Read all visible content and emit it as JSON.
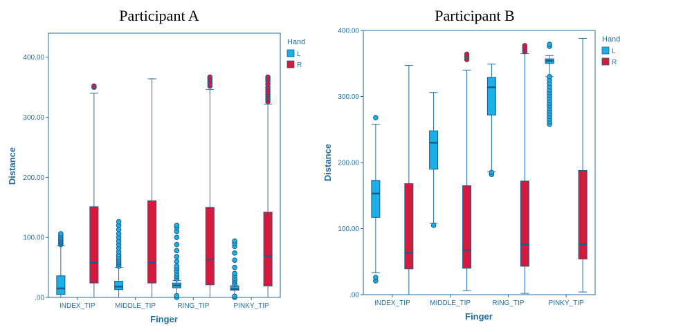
{
  "chart_data": [
    {
      "type": "box",
      "title": "Participant A",
      "xlabel": "Finger",
      "ylabel": "Distance",
      "ylim": [
        0,
        440
      ],
      "yticks": [
        0,
        100,
        200,
        300,
        400
      ],
      "ytick_labels": [
        ".00",
        "100.00",
        "200.00",
        "300.00",
        "400.00"
      ],
      "categories": [
        "INDEX_TIP",
        "MIDDLE_TIP",
        "RING_TIP",
        "PINKY_TIP"
      ],
      "legend_title": "Hand",
      "legend_position": "right",
      "series": [
        {
          "name": "L",
          "color": "#1ab0e6",
          "boxes": [
            {
              "min": 0,
              "q1": 5,
              "median": 15,
              "q3": 36,
              "max": 86,
              "outliers": [
                88,
                90,
                92,
                94,
                96,
                98,
                100,
                103,
                106
              ]
            },
            {
              "min": 0,
              "q1": 13,
              "median": 18,
              "q3": 27,
              "max": 50,
              "outliers": [
                52,
                55,
                58,
                61,
                64,
                67,
                71,
                76,
                82,
                88,
                94,
                100,
                106,
                113,
                120,
                126
              ]
            },
            {
              "min": 0,
              "q1": 16,
              "median": 20,
              "q3": 24,
              "max": 28,
              "outliers": [
                0,
                3,
                31,
                35,
                39,
                44,
                48,
                52,
                60,
                68,
                78,
                88,
                100,
                110,
                116,
                120
              ]
            },
            {
              "min": 0,
              "q1": 12,
              "median": 14,
              "q3": 18,
              "max": 20,
              "outliers": [
                0,
                2,
                23,
                26,
                29,
                32,
                36,
                40,
                50,
                62,
                74,
                85,
                90,
                94
              ]
            }
          ]
        },
        {
          "name": "R",
          "color": "#d61a3c",
          "boxes": [
            {
              "min": 0,
              "q1": 24,
              "median": 58,
              "q3": 151,
              "max": 340,
              "outliers": [
                350,
                352
              ]
            },
            {
              "min": 0,
              "q1": 24,
              "median": 58,
              "q3": 161,
              "max": 364,
              "outliers": []
            },
            {
              "min": 0,
              "q1": 21,
              "median": 63,
              "q3": 150,
              "max": 346,
              "outliers": [
                352,
                356,
                360,
                364,
                367
              ]
            },
            {
              "min": 0,
              "q1": 19,
              "median": 69,
              "q3": 142,
              "max": 322,
              "outliers": [
                326,
                330,
                334,
                338,
                342,
                346,
                350,
                355,
                360,
                364,
                367
              ]
            }
          ]
        }
      ]
    },
    {
      "type": "box",
      "title": "Participant B",
      "xlabel": "Finger",
      "ylabel": "Distance",
      "ylim": [
        0,
        400
      ],
      "yticks": [
        0,
        100,
        200,
        300,
        400
      ],
      "ytick_labels": [
        ".00",
        "100.00",
        "200.00",
        "300.00",
        "400.00"
      ],
      "categories": [
        "INDEX_TIP",
        "MIDDLE_TIP",
        "RING_TIP",
        "PINKY_TIP"
      ],
      "legend_title": "Hand",
      "legend_position": "right",
      "series": [
        {
          "name": "L",
          "color": "#1ab0e6",
          "boxes": [
            {
              "min": 33,
              "q1": 117,
              "median": 153,
              "q3": 173,
              "max": 258,
              "outliers": [
                21,
                26,
                268
              ]
            },
            {
              "min": 108,
              "q1": 190,
              "median": 230,
              "q3": 248,
              "max": 306,
              "outliers": [
                105
              ]
            },
            {
              "min": 186,
              "q1": 272,
              "median": 314,
              "q3": 329,
              "max": 349,
              "outliers": [
                182,
                185
              ]
            },
            {
              "min": 330,
              "q1": 350,
              "median": 354,
              "q3": 357,
              "max": 362,
              "outliers": [
                258,
                262,
                266,
                270,
                274,
                278,
                282,
                286,
                290,
                294,
                298,
                302,
                306,
                310,
                315,
                320,
                325,
                330,
                376,
                379
              ]
            }
          ]
        },
        {
          "name": "R",
          "color": "#d61a3c",
          "boxes": [
            {
              "min": 0,
              "q1": 39,
              "median": 63,
              "q3": 168,
              "max": 347,
              "outliers": []
            },
            {
              "min": 6,
              "q1": 40,
              "median": 68,
              "q3": 165,
              "max": 340,
              "outliers": [
                356,
                360,
                364
              ]
            },
            {
              "min": 2,
              "q1": 43,
              "median": 76,
              "q3": 172,
              "max": 365,
              "outliers": [
                368,
                371,
                374,
                377
              ]
            },
            {
              "min": 4,
              "q1": 54,
              "median": 76,
              "q3": 188,
              "max": 388,
              "outliers": []
            }
          ]
        }
      ]
    }
  ]
}
